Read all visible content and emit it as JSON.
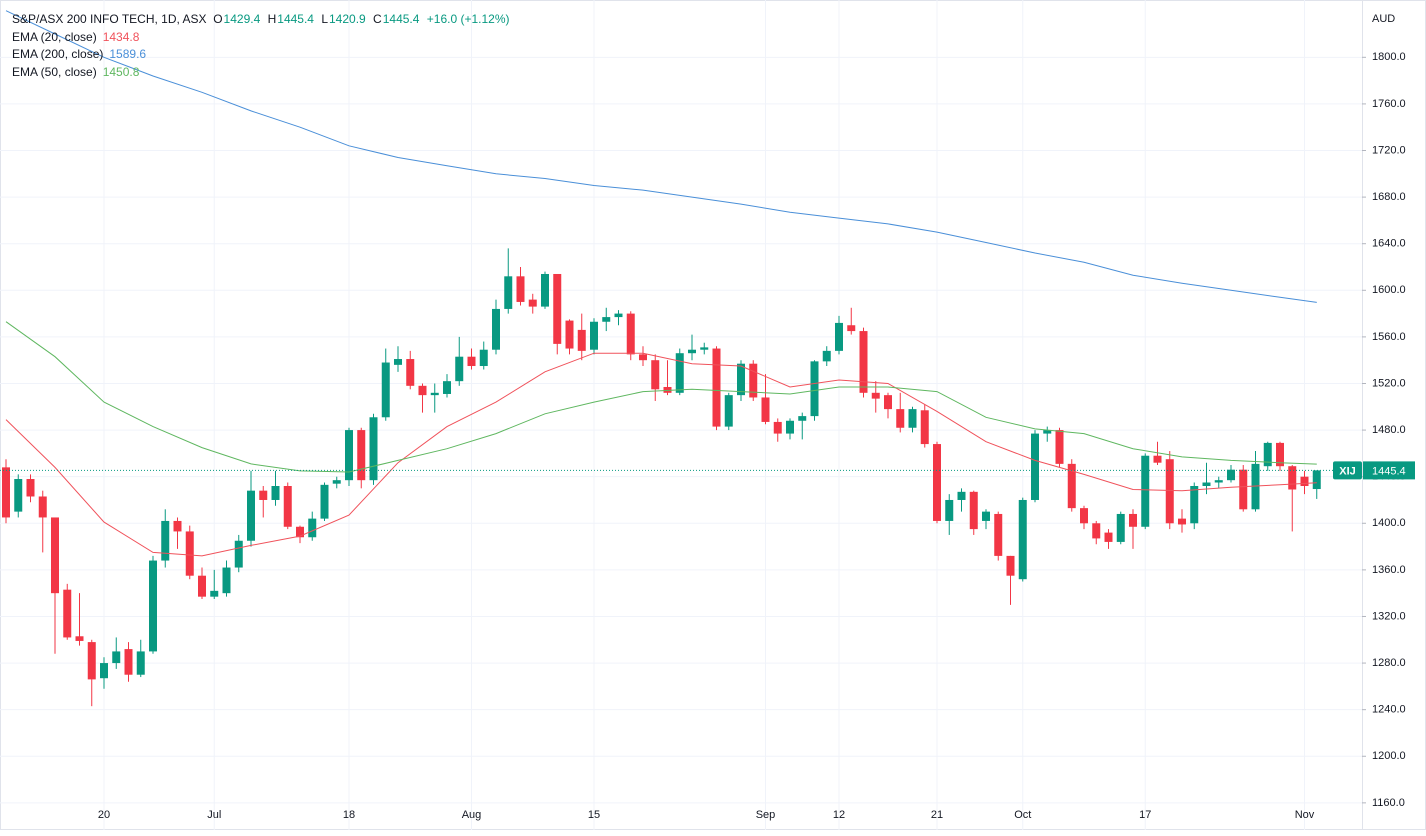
{
  "chart_data": {
    "type": "candlestick",
    "title": "S&P/ASX 200 INFO TECH, 1D, ASX",
    "ohlc_letters": [
      "O",
      "H",
      "L",
      "C"
    ],
    "change": "+16.0 (+1.12%)",
    "currency": "AUD",
    "symbol": "XIJ",
    "up_color": "#089981",
    "down_color": "#f23645",
    "categories": [
      null,
      null,
      null,
      null,
      null,
      null,
      null,
      null,
      "20",
      null,
      null,
      null,
      null,
      null,
      null,
      null,
      null,
      "Jul",
      null,
      null,
      null,
      null,
      null,
      null,
      null,
      null,
      null,
      null,
      "18",
      null,
      null,
      null,
      null,
      null,
      null,
      null,
      null,
      null,
      "Aug",
      null,
      null,
      null,
      null,
      null,
      null,
      null,
      null,
      null,
      "15",
      null,
      null,
      null,
      null,
      null,
      null,
      null,
      null,
      null,
      null,
      null,
      null,
      null,
      "Sep",
      null,
      null,
      null,
      null,
      null,
      "12",
      null,
      null,
      null,
      null,
      null,
      null,
      null,
      "21",
      null,
      null,
      null,
      null,
      null,
      null,
      "Oct",
      null,
      null,
      null,
      null,
      null,
      null,
      null,
      null,
      null,
      "17",
      null,
      null,
      null,
      null,
      null,
      null,
      null,
      null,
      null,
      null,
      null,
      null,
      "Nov",
      null
    ],
    "open": [
      1448,
      1410,
      1438,
      1423,
      1405,
      1343,
      1303,
      1298,
      1267,
      1280,
      1292,
      1270,
      1290,
      1368,
      1402,
      1393,
      1355,
      1337,
      1340,
      1362,
      1385,
      1428,
      1420,
      1432,
      1397,
      1388,
      1404,
      1434,
      1437,
      1480,
      1437,
      1491,
      1536,
      1541,
      1518,
      1510,
      1511,
      1522,
      1543,
      1535,
      1549,
      1584,
      1612,
      1592,
      1586,
      1614,
      1574,
      1566,
      1549,
      1573,
      1577,
      1580,
      1545,
      1540,
      1517,
      1512,
      1546,
      1549,
      1550,
      1483,
      1510,
      1537,
      1508,
      1487,
      1477,
      1488,
      1492,
      1539,
      1548,
      1570,
      1565,
      1512,
      1510,
      1498,
      1482,
      1497,
      1468,
      1402,
      1420,
      1427,
      1402,
      1408,
      1372,
      1352,
      1420,
      1477,
      1480,
      1451,
      1413,
      1400,
      1392,
      1384,
      1408,
      1397,
      1458,
      1455,
      1404,
      1400,
      1432,
      1435,
      1437,
      1446,
      1412,
      1449,
      1469,
      1449,
      1440,
      1429.4
    ],
    "high": [
      1455,
      1442,
      1442,
      1428,
      1405,
      1348,
      1340,
      1300,
      1285,
      1302,
      1298,
      1300,
      1372,
      1412,
      1405,
      1398,
      1362,
      1360,
      1368,
      1390,
      1445,
      1432,
      1445,
      1435,
      1398,
      1410,
      1435,
      1440,
      1482,
      1482,
      1494,
      1550,
      1552,
      1548,
      1520,
      1520,
      1528,
      1560,
      1550,
      1556,
      1592,
      1636,
      1620,
      1597,
      1616,
      1614,
      1575,
      1580,
      1576,
      1585,
      1583,
      1582,
      1552,
      1545,
      1540,
      1550,
      1562,
      1555,
      1552,
      1512,
      1540,
      1540,
      1528,
      1490,
      1490,
      1495,
      1540,
      1552,
      1578,
      1585,
      1568,
      1522,
      1512,
      1512,
      1500,
      1502,
      1470,
      1425,
      1430,
      1428,
      1412,
      1410,
      1372,
      1422,
      1480,
      1483,
      1482,
      1455,
      1415,
      1402,
      1395,
      1410,
      1412,
      1460,
      1470,
      1462,
      1412,
      1435,
      1452,
      1440,
      1450,
      1450,
      1462,
      1470,
      1470,
      1450,
      1445,
      1445.4
    ],
    "low": [
      1400,
      1405,
      1418,
      1375,
      1288,
      1300,
      1295,
      1243,
      1258,
      1275,
      1264,
      1268,
      1288,
      1362,
      1378,
      1352,
      1335,
      1335,
      1337,
      1358,
      1380,
      1405,
      1415,
      1395,
      1383,
      1385,
      1402,
      1430,
      1432,
      1430,
      1433,
      1488,
      1530,
      1515,
      1495,
      1495,
      1508,
      1518,
      1532,
      1532,
      1545,
      1580,
      1587,
      1580,
      1584,
      1545,
      1545,
      1540,
      1545,
      1565,
      1570,
      1540,
      1535,
      1505,
      1510,
      1510,
      1540,
      1545,
      1480,
      1480,
      1505,
      1505,
      1485,
      1470,
      1472,
      1472,
      1488,
      1535,
      1545,
      1562,
      1508,
      1495,
      1490,
      1478,
      1478,
      1465,
      1400,
      1390,
      1410,
      1390,
      1395,
      1368,
      1330,
      1350,
      1418,
      1470,
      1448,
      1410,
      1395,
      1382,
      1378,
      1382,
      1378,
      1395,
      1450,
      1395,
      1392,
      1395,
      1425,
      1430,
      1435,
      1410,
      1410,
      1445,
      1445,
      1393,
      1425,
      1420.9
    ],
    "close": [
      1405,
      1438,
      1423,
      1405,
      1340,
      1302,
      1299,
      1266,
      1280,
      1290,
      1270,
      1290,
      1368,
      1402,
      1393,
      1355,
      1337,
      1342,
      1362,
      1385,
      1428,
      1420,
      1432,
      1397,
      1388,
      1404,
      1433,
      1437,
      1480,
      1437,
      1491,
      1538,
      1541,
      1518,
      1510,
      1512,
      1522,
      1543,
      1535,
      1549,
      1584,
      1612,
      1590,
      1586,
      1614,
      1554,
      1550,
      1548,
      1573,
      1577,
      1580,
      1545,
      1540,
      1515,
      1512,
      1546,
      1549,
      1551,
      1483,
      1510,
      1537,
      1508,
      1487,
      1477,
      1488,
      1492,
      1539,
      1548,
      1572,
      1565,
      1512,
      1507,
      1498,
      1482,
      1498,
      1468,
      1402,
      1420,
      1427,
      1395,
      1410,
      1372,
      1355,
      1420,
      1477,
      1480,
      1451,
      1413,
      1400,
      1387,
      1384,
      1408,
      1397,
      1458,
      1452,
      1400,
      1399,
      1432,
      1435,
      1437,
      1446,
      1412,
      1451,
      1469,
      1449,
      1429,
      1432,
      1445.4
    ],
    "series": [
      {
        "name": "EMA (20, close)",
        "color": "#f0525b",
        "x": [
          0,
          4,
          8,
          12,
          16,
          20,
          24,
          28,
          32,
          36,
          40,
          44,
          48,
          52,
          56,
          60,
          64,
          68,
          72,
          76,
          80,
          84,
          88,
          92,
          96,
          100,
          104,
          107
        ],
        "values": [
          1489,
          1448,
          1401,
          1375,
          1372,
          1381,
          1389,
          1407,
          1452,
          1483,
          1504,
          1530,
          1546,
          1546,
          1537,
          1535,
          1517,
          1523,
          1520,
          1496,
          1470,
          1454,
          1442,
          1429,
          1428,
          1431,
          1433,
          1434.8
        ]
      },
      {
        "name": "EMA (200, close)",
        "color": "#4a8fd8",
        "x": [
          0,
          4,
          8,
          12,
          16,
          20,
          24,
          28,
          32,
          36,
          40,
          44,
          48,
          52,
          56,
          60,
          64,
          68,
          72,
          76,
          80,
          84,
          88,
          92,
          96,
          100,
          104,
          107
        ],
        "values": [
          1840,
          1820,
          1800,
          1784,
          1770,
          1754,
          1740,
          1724,
          1714,
          1707,
          1700,
          1696,
          1690,
          1686,
          1680,
          1674,
          1667,
          1662,
          1657,
          1650,
          1641,
          1632,
          1624,
          1613,
          1606,
          1600,
          1594,
          1589.6
        ]
      },
      {
        "name": "EMA (50, close)",
        "color": "#5fb760",
        "x": [
          0,
          4,
          8,
          12,
          16,
          20,
          24,
          28,
          32,
          36,
          40,
          44,
          48,
          52,
          56,
          60,
          64,
          68,
          72,
          76,
          80,
          84,
          88,
          92,
          96,
          100,
          104,
          107
        ],
        "values": [
          1573,
          1543,
          1504,
          1483,
          1465,
          1451,
          1445,
          1444,
          1454,
          1464,
          1477,
          1494,
          1504,
          1513,
          1515,
          1513,
          1511,
          1517,
          1517,
          1513,
          1491,
          1481,
          1477,
          1464,
          1457,
          1454,
          1452,
          1450.8
        ]
      }
    ],
    "ylim": [
      1136.7,
      1849.2
    ],
    "yticks": [
      {
        "value": 1160,
        "label": "1160.0"
      },
      {
        "value": 1200,
        "label": "1200.0"
      },
      {
        "value": 1240,
        "label": "1240.0"
      },
      {
        "value": 1280,
        "label": "1280.0"
      },
      {
        "value": 1320,
        "label": "1320.0"
      },
      {
        "value": 1360,
        "label": "1360.0"
      },
      {
        "value": 1400,
        "label": "1400.0"
      },
      {
        "value": 1440,
        "label": "1440.0"
      },
      {
        "value": 1480,
        "label": "1480.0"
      },
      {
        "value": 1520,
        "label": "1520.0"
      },
      {
        "value": 1560,
        "label": "1560.0"
      },
      {
        "value": 1600,
        "label": "1600.0"
      },
      {
        "value": 1640,
        "label": "1640.0"
      },
      {
        "value": 1680,
        "label": "1680.0"
      },
      {
        "value": 1720,
        "label": "1720.0"
      },
      {
        "value": 1760,
        "label": "1760.0"
      },
      {
        "value": 1800,
        "label": "1800.0"
      }
    ],
    "grid": true
  }
}
